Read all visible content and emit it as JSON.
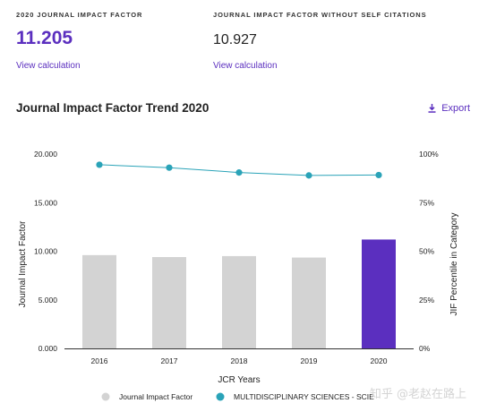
{
  "metrics": {
    "jif": {
      "label": "2020 JOURNAL IMPACT FACTOR",
      "value": "11.205",
      "link": "View calculation"
    },
    "jif_no_self": {
      "label": "JOURNAL IMPACT FACTOR WITHOUT SELF CITATIONS",
      "value": "10.927",
      "link": "View calculation"
    }
  },
  "trend": {
    "title": "Journal Impact Factor Trend 2020",
    "export_label": "Export"
  },
  "watermark": "知乎 @老赵在路上",
  "colors": {
    "accent": "#5b2fbf",
    "bar_default": "#d3d3d3",
    "bar_highlight": "#5b2fbf",
    "line": "#2aa3b8"
  },
  "chart_data": {
    "type": "bar",
    "categories": [
      "2016",
      "2017",
      "2018",
      "2019",
      "2020"
    ],
    "highlight_category": "2020",
    "xlabel": "JCR Years",
    "ylabel": "Journal Impact Factor",
    "y2label": "JIF Percentile in Category",
    "ylim": [
      0,
      20
    ],
    "yticks": [
      "0.000",
      "5.000",
      "10.000",
      "15.000",
      "20.000"
    ],
    "y2lim": [
      0,
      100
    ],
    "y2ticks": [
      "0%",
      "25%",
      "50%",
      "75%",
      "100%"
    ],
    "series": [
      {
        "name": "Journal Impact Factor",
        "type": "bar",
        "axis": "left",
        "values": [
          9.6,
          9.4,
          9.5,
          9.35,
          11.205
        ]
      },
      {
        "name": "MULTIDISCIPLINARY SCIENCES - SCIE",
        "type": "line",
        "axis": "right",
        "values": [
          94.5,
          93.0,
          90.5,
          89.0,
          89.2
        ]
      }
    ],
    "legend_position": "bottom",
    "grid": false
  }
}
